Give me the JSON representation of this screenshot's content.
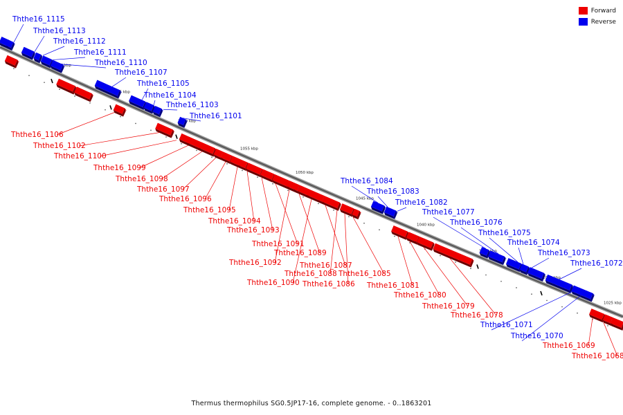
{
  "legend": {
    "forward": {
      "label": "Forward",
      "color": "#ee0000"
    },
    "reverse": {
      "label": "Reverse",
      "color": "#0000ee"
    }
  },
  "ticks": [
    "1070 kbp",
    "1065 kbp",
    "1060 kbp",
    "1055 kbp",
    "1050 kbp",
    "1045 kbp",
    "1040 kbp",
    "1035 kbp",
    "1030 kbp",
    "1025 kbp"
  ],
  "genes": [
    {
      "id": "Ththe16_1115",
      "strand": "reverse"
    },
    {
      "id": "Ththe16_1113",
      "strand": "reverse"
    },
    {
      "id": "Ththe16_1112",
      "strand": "reverse"
    },
    {
      "id": "Ththe16_1111",
      "strand": "reverse"
    },
    {
      "id": "Ththe16_1110",
      "strand": "reverse"
    },
    {
      "id": "Ththe16_1107",
      "strand": "reverse"
    },
    {
      "id": "Ththe16_1105",
      "strand": "reverse"
    },
    {
      "id": "Ththe16_1104",
      "strand": "reverse"
    },
    {
      "id": "Ththe16_1103",
      "strand": "reverse"
    },
    {
      "id": "Ththe16_1101",
      "strand": "reverse"
    },
    {
      "id": "Ththe16_1106",
      "strand": "forward"
    },
    {
      "id": "Ththe16_1102",
      "strand": "forward"
    },
    {
      "id": "Ththe16_1100",
      "strand": "forward"
    },
    {
      "id": "Ththe16_1099",
      "strand": "forward"
    },
    {
      "id": "Ththe16_1098",
      "strand": "forward"
    },
    {
      "id": "Ththe16_1097",
      "strand": "forward"
    },
    {
      "id": "Ththe16_1096",
      "strand": "forward"
    },
    {
      "id": "Ththe16_1095",
      "strand": "forward"
    },
    {
      "id": "Ththe16_1094",
      "strand": "forward"
    },
    {
      "id": "Ththe16_1093",
      "strand": "forward"
    },
    {
      "id": "Ththe16_1091",
      "strand": "forward"
    },
    {
      "id": "Ththe16_1092",
      "strand": "forward"
    },
    {
      "id": "Ththe16_1089",
      "strand": "forward"
    },
    {
      "id": "Ththe16_1090",
      "strand": "forward"
    },
    {
      "id": "Ththe16_1087",
      "strand": "forward"
    },
    {
      "id": "Ththe16_1088",
      "strand": "forward"
    },
    {
      "id": "Ththe16_1086",
      "strand": "forward"
    },
    {
      "id": "Ththe16_1085",
      "strand": "forward"
    },
    {
      "id": "Ththe16_1084",
      "strand": "reverse"
    },
    {
      "id": "Ththe16_1083",
      "strand": "reverse"
    },
    {
      "id": "Ththe16_1082",
      "strand": "reverse"
    },
    {
      "id": "Ththe16_1077",
      "strand": "reverse"
    },
    {
      "id": "Ththe16_1076",
      "strand": "reverse"
    },
    {
      "id": "Ththe16_1075",
      "strand": "reverse"
    },
    {
      "id": "Ththe16_1074",
      "strand": "reverse"
    },
    {
      "id": "Ththe16_1073",
      "strand": "reverse"
    },
    {
      "id": "Ththe16_1072",
      "strand": "reverse"
    },
    {
      "id": "Ththe16_1081",
      "strand": "forward"
    },
    {
      "id": "Ththe16_1080",
      "strand": "forward"
    },
    {
      "id": "Ththe16_1079",
      "strand": "forward"
    },
    {
      "id": "Ththe16_1078",
      "strand": "forward"
    },
    {
      "id": "Ththe16_1071",
      "strand": "reverse"
    },
    {
      "id": "Ththe16_1070",
      "strand": "reverse"
    },
    {
      "id": "Ththe16_1069",
      "strand": "forward"
    },
    {
      "id": "Ththe16_1068",
      "strand": "forward"
    }
  ],
  "footer": "Thermus thermophilus SG0.5JP17-16, complete genome. - 0..1863201"
}
